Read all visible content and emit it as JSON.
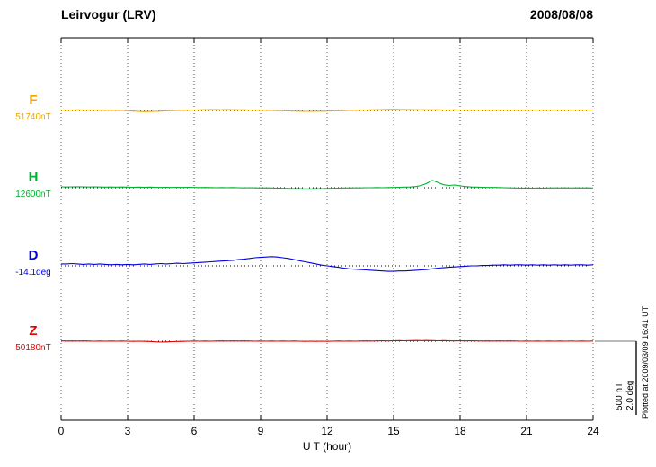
{
  "chart_data": {
    "type": "line",
    "title": "Leirvogur (LRV)",
    "date": "2008/08/08",
    "xlabel": "U T (hour)",
    "xlim": [
      0,
      24
    ],
    "x_ticks": [
      0,
      3,
      6,
      9,
      12,
      15,
      18,
      21,
      24
    ],
    "x_step_hours": 0.25,
    "grid": "dotted vertical gridlines at each 3-hour tick, dotted horizontal baseline per trace",
    "scale_bar": {
      "nt_label": "500 nT",
      "deg_label": "2.0 deg",
      "nt": 500,
      "deg": 2.0
    },
    "plotted_at": "Plotted at 2009/03/09 16:41 UT",
    "series": [
      {
        "name": "F",
        "baseline_label": "51740nT",
        "baseline_value": 51740,
        "unit": "nT",
        "color": "#f0a500",
        "values": [
          3,
          2,
          3,
          4,
          3,
          2,
          3,
          2,
          1,
          2,
          1,
          0,
          -2,
          -4,
          -6,
          -8,
          -7,
          -6,
          -4,
          -2,
          -1,
          0,
          1,
          2,
          3,
          4,
          5,
          6,
          6,
          5,
          6,
          5,
          4,
          4,
          3,
          3,
          2,
          1,
          0,
          -1,
          -2,
          -3,
          -4,
          -5,
          -6,
          -6,
          -5,
          -5,
          -4,
          -3,
          -2,
          -1,
          0,
          1,
          2,
          3,
          4,
          5,
          6,
          7,
          8,
          7,
          6,
          6,
          5,
          5,
          4,
          4,
          4,
          3,
          3,
          4,
          3,
          3,
          2,
          3,
          3,
          2,
          3,
          2,
          3,
          3,
          2,
          3,
          2,
          3,
          3,
          2,
          3,
          2,
          3,
          3,
          2,
          3,
          2,
          3,
          3
        ]
      },
      {
        "name": "H",
        "baseline_label": "12600nT",
        "baseline_value": 12600,
        "unit": "nT",
        "color": "#00b22d",
        "values": [
          6,
          5,
          6,
          7,
          6,
          5,
          6,
          5,
          4,
          5,
          4,
          5,
          4,
          3,
          4,
          3,
          4,
          3,
          2,
          3,
          2,
          3,
          2,
          3,
          2,
          1,
          2,
          1,
          0,
          1,
          0,
          1,
          0,
          -1,
          0,
          -1,
          -2,
          -1,
          -2,
          -3,
          -4,
          -5,
          -6,
          -7,
          -8,
          -8,
          -7,
          -6,
          -5,
          -4,
          -3,
          -2,
          -2,
          -1,
          -1,
          0,
          0,
          1,
          0,
          1,
          2,
          3,
          4,
          5,
          8,
          15,
          30,
          50,
          35,
          20,
          15,
          18,
          12,
          8,
          5,
          4,
          3,
          2,
          2,
          1,
          0,
          -1,
          -2,
          -3,
          -2,
          -3,
          -2,
          -3,
          -2,
          -1,
          -2,
          -1,
          -2,
          -1,
          -2,
          -1,
          -2
        ]
      },
      {
        "name": "D",
        "baseline_label": "-14.1deg",
        "baseline_value": -14.1,
        "unit": "deg",
        "color": "#0000dd",
        "values": [
          0.05,
          0.05,
          0.06,
          0.05,
          0.04,
          0.05,
          0.04,
          0.05,
          0.04,
          0.03,
          0.04,
          0.03,
          0.04,
          0.03,
          0.04,
          0.05,
          0.04,
          0.05,
          0.06,
          0.05,
          0.06,
          0.07,
          0.06,
          0.07,
          0.08,
          0.09,
          0.1,
          0.11,
          0.12,
          0.13,
          0.14,
          0.15,
          0.17,
          0.18,
          0.2,
          0.22,
          0.23,
          0.24,
          0.25,
          0.24,
          0.22,
          0.2,
          0.17,
          0.14,
          0.11,
          0.08,
          0.05,
          0.02,
          0.0,
          -0.02,
          -0.04,
          -0.06,
          -0.08,
          -0.09,
          -0.1,
          -0.11,
          -0.12,
          -0.13,
          -0.14,
          -0.15,
          -0.15,
          -0.14,
          -0.14,
          -0.13,
          -0.12,
          -0.11,
          -0.1,
          -0.08,
          -0.06,
          -0.05,
          -0.04,
          -0.03,
          -0.02,
          -0.01,
          0.0,
          0.0,
          0.01,
          0.01,
          0.02,
          0.02,
          0.03,
          0.02,
          0.03,
          0.03,
          0.02,
          0.03,
          0.02,
          0.03,
          0.02,
          0.03,
          0.02,
          0.03,
          0.02,
          0.03,
          0.03,
          0.02,
          0.03
        ]
      },
      {
        "name": "Z",
        "baseline_label": "50180nT",
        "baseline_value": 50180,
        "unit": "nT",
        "color": "#e00000",
        "values": [
          2,
          1,
          2,
          1,
          2,
          1,
          0,
          1,
          0,
          1,
          0,
          1,
          0,
          -1,
          0,
          -1,
          -2,
          -4,
          -6,
          -5,
          -3,
          -2,
          -1,
          0,
          1,
          0,
          1,
          0,
          1,
          2,
          1,
          2,
          1,
          2,
          1,
          0,
          1,
          0,
          1,
          0,
          1,
          0,
          1,
          0,
          -1,
          0,
          -1,
          0,
          -1,
          0,
          1,
          0,
          1,
          0,
          1,
          2,
          1,
          2,
          3,
          2,
          3,
          4,
          3,
          4,
          5,
          4,
          5,
          4,
          3,
          4,
          3,
          2,
          3,
          2,
          3,
          2,
          1,
          2,
          1,
          2,
          1,
          2,
          1,
          0,
          1,
          0,
          1,
          0,
          1,
          0,
          1,
          0,
          1,
          0,
          1,
          0,
          1
        ]
      }
    ]
  }
}
